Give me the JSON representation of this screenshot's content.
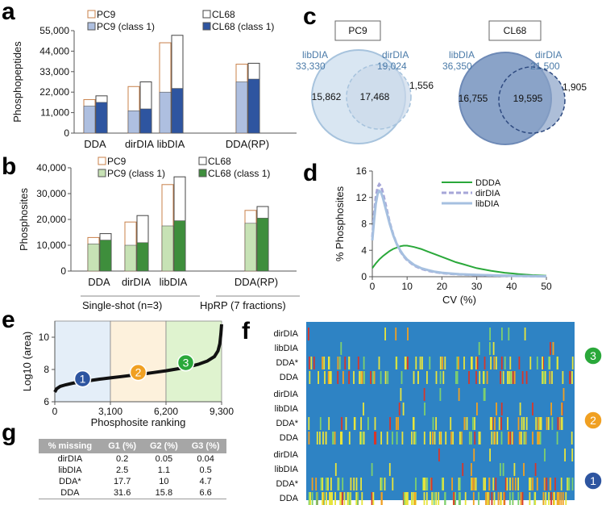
{
  "panel_labels": {
    "a": "a",
    "b": "b",
    "c": "c",
    "d": "d",
    "e": "e",
    "f": "f",
    "g": "g"
  },
  "chart_data": [
    {
      "panel": "a",
      "type": "bar",
      "ylabel": "Phosphopeptides",
      "ylim": [
        0,
        55000
      ],
      "yticks": [
        "0",
        "11,000",
        "22,000",
        "33,000",
        "44,000",
        "55,000"
      ],
      "categories": [
        "DDA",
        "dirDIA",
        "libDIA",
        "DDA(RP)"
      ],
      "legend": [
        "PC9",
        "CL68",
        "PC9 (class 1)",
        "CL68 (class 1)"
      ],
      "series": [
        {
          "name": "PC9",
          "values": [
            18000,
            25000,
            48500,
            37000
          ]
        },
        {
          "name": "CL68",
          "values": [
            20000,
            27500,
            52500,
            37500
          ]
        },
        {
          "name": "PC9 (class 1)",
          "values": [
            14500,
            12000,
            22000,
            27500
          ]
        },
        {
          "name": "CL68 (class 1)",
          "values": [
            16500,
            13000,
            24000,
            29000
          ]
        }
      ],
      "colors": {
        "pc9_edge": "#c8804a",
        "cl68_edge": "#444444",
        "pc9_fill": "#aebfe0",
        "cl68_fill": "#2e55a0"
      }
    },
    {
      "panel": "b",
      "type": "bar",
      "ylabel": "Phosphosites",
      "ylim": [
        0,
        40000
      ],
      "yticks": [
        "0",
        "10,000",
        "20,000",
        "30,000",
        "40,000"
      ],
      "categories": [
        "DDA",
        "dirDIA",
        "libDIA",
        "DDA(RP)"
      ],
      "legend": [
        "PC9",
        "CL68",
        "PC9 (class 1)",
        "CL68 (class 1)"
      ],
      "group_labels": [
        "Single-shot (n=3)",
        "HpRP (7 fractions)"
      ],
      "series": [
        {
          "name": "PC9",
          "values": [
            13000,
            19000,
            33500,
            23500
          ]
        },
        {
          "name": "CL68",
          "values": [
            14500,
            21500,
            36500,
            25000
          ]
        },
        {
          "name": "PC9 (class 1)",
          "values": [
            10500,
            10000,
            17500,
            18500
          ]
        },
        {
          "name": "CL68 (class 1)",
          "values": [
            12000,
            11000,
            19500,
            20500
          ]
        }
      ],
      "colors": {
        "pc9_edge": "#c8804a",
        "cl68_edge": "#444444",
        "pc9_fill": "#c7e2b5",
        "cl68_fill": "#3e8e3c"
      }
    },
    {
      "panel": "c",
      "type": "venn",
      "diagrams": [
        {
          "box": "PC9",
          "left_name": "libDIA",
          "left_total": "33,330",
          "right_name": "dirDIA",
          "right_total": "19,024",
          "left_only": "15,862",
          "overlap": "17,468",
          "right_only": "1,556"
        },
        {
          "box": "CL68",
          "left_name": "libDIA",
          "left_total": "36,350",
          "right_name": "dirDIA",
          "right_total": "21,500",
          "left_only": "16,755",
          "overlap": "19,595",
          "right_only": "1,905"
        }
      ]
    },
    {
      "panel": "d",
      "type": "line",
      "xlabel": "CV (%)",
      "ylabel": "% Phosphosites",
      "xlim": [
        0,
        50
      ],
      "ylim": [
        0,
        16
      ],
      "xticks": [
        "0",
        "10",
        "20",
        "30",
        "40",
        "50"
      ],
      "yticks": [
        "0",
        "4",
        "8",
        "12",
        "16"
      ],
      "series": [
        {
          "name": "DDDA",
          "color": "#2aa83a",
          "x": [
            0,
            1,
            2,
            3,
            4,
            5,
            6,
            7,
            8,
            9,
            10,
            11,
            12,
            14,
            16,
            18,
            20,
            22,
            24,
            26,
            28,
            30,
            32,
            34,
            36,
            38,
            40,
            42,
            44,
            46,
            48,
            50
          ],
          "y": [
            1.3,
            2.0,
            2.6,
            3.1,
            3.5,
            3.9,
            4.2,
            4.4,
            4.6,
            4.7,
            4.7,
            4.6,
            4.5,
            4.2,
            3.8,
            3.4,
            3.0,
            2.6,
            2.2,
            1.9,
            1.6,
            1.3,
            1.1,
            0.9,
            0.75,
            0.6,
            0.5,
            0.4,
            0.32,
            0.25,
            0.2,
            0.15
          ]
        },
        {
          "name": "dirDIA",
          "color": "#a6a6d8",
          "x": [
            0,
            0.5,
            1,
            1.5,
            2,
            2.5,
            3,
            4,
            5,
            6,
            7,
            8,
            9,
            10,
            12,
            14,
            16,
            18,
            20,
            22,
            25,
            30,
            35,
            40,
            45,
            50
          ],
          "y": [
            6.0,
            9.5,
            12.0,
            13.5,
            14.0,
            13.7,
            12.8,
            10.5,
            8.2,
            6.4,
            5.0,
            3.9,
            3.1,
            2.5,
            1.7,
            1.2,
            0.9,
            0.7,
            0.55,
            0.45,
            0.35,
            0.25,
            0.18,
            0.12,
            0.08,
            0.05
          ]
        },
        {
          "name": "libDIA",
          "color": "#a6c0e0",
          "x": [
            0,
            0.5,
            1,
            1.5,
            2,
            2.5,
            3,
            4,
            5,
            6,
            7,
            8,
            9,
            10,
            12,
            14,
            16,
            18,
            20,
            22,
            25,
            30,
            35,
            40,
            45,
            50
          ],
          "y": [
            5.5,
            8.5,
            11.0,
            12.5,
            13.0,
            12.8,
            12.0,
            10.0,
            8.0,
            6.3,
            5.0,
            4.0,
            3.2,
            2.6,
            1.8,
            1.3,
            1.0,
            0.75,
            0.6,
            0.5,
            0.38,
            0.27,
            0.2,
            0.13,
            0.09,
            0.05
          ]
        }
      ]
    },
    {
      "panel": "e",
      "type": "line",
      "xlabel": "Phosphosite ranking",
      "ylabel": "Log10 (area)",
      "ylim": [
        6,
        11
      ],
      "xlim": [
        0,
        9300
      ],
      "xticks": [
        "0",
        "3,100",
        "6,200",
        "9,300"
      ],
      "yticks": [
        "6",
        "8",
        "10"
      ],
      "groups": [
        "1",
        "2",
        "3"
      ],
      "group_colors": [
        "#2e55a0",
        "#f0a022",
        "#2aa83a"
      ],
      "region_fills": [
        "#e4eef8",
        "#fdf1dc",
        "#dff3cf"
      ],
      "x": [
        0,
        100,
        300,
        600,
        1000,
        1500,
        2000,
        2500,
        3100,
        3700,
        4300,
        4900,
        5500,
        6200,
        6800,
        7400,
        8000,
        8500,
        8900,
        9100,
        9200,
        9260,
        9300
      ],
      "y": [
        6.6,
        6.8,
        6.95,
        7.05,
        7.15,
        7.25,
        7.32,
        7.4,
        7.48,
        7.56,
        7.64,
        7.72,
        7.81,
        7.92,
        8.03,
        8.15,
        8.32,
        8.52,
        8.8,
        9.15,
        9.6,
        10.2,
        10.8
      ]
    },
    {
      "panel": "f",
      "type": "heatmap",
      "groups": [
        {
          "id": "3",
          "color": "#2aa83a",
          "rows": [
            "dirDIA",
            "libDIA",
            "DDA*",
            "DDA"
          ],
          "density": [
            0.07,
            0.06,
            0.45,
            0.5
          ]
        },
        {
          "id": "2",
          "color": "#f0a022",
          "rows": [
            "dirDIA",
            "libDIA",
            "DDA*",
            "DDA"
          ],
          "density": [
            0.06,
            0.1,
            0.4,
            0.6
          ]
        },
        {
          "id": "1",
          "color": "#2e55a0",
          "rows": [
            "dirDIA",
            "libDIA",
            "DDA*",
            "DDA"
          ],
          "density": [
            0.05,
            0.08,
            0.55,
            0.85
          ]
        }
      ],
      "colors": {
        "background": "#2e83c4",
        "low": "#e7e43c",
        "mid": "#f0a022",
        "high": "#d8362a",
        "green": "#7ed06e"
      }
    },
    {
      "panel": "g",
      "type": "table",
      "columns": [
        "% missing",
        "G1 (%)",
        "G2 (%)",
        "G3 (%)"
      ],
      "rows": [
        [
          "dirDIA",
          "0.2",
          "0.05",
          "0.04"
        ],
        [
          "libDIA",
          "2.5",
          "1.1",
          "0.5"
        ],
        [
          "DDA*",
          "17.7",
          "10",
          "4.7"
        ],
        [
          "DDA",
          "31.6",
          "15.8",
          "6.6"
        ]
      ]
    }
  ]
}
